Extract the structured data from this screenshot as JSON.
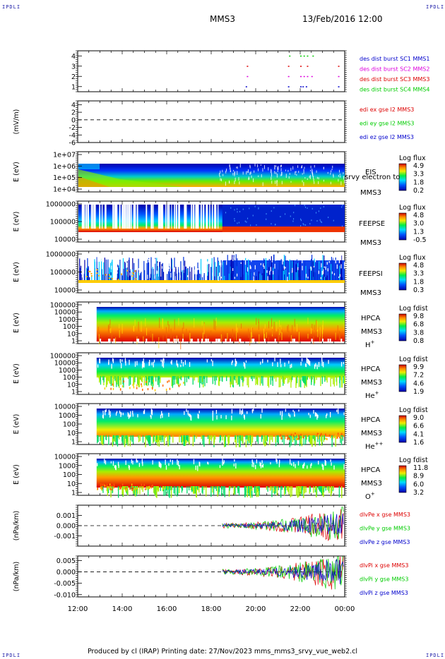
{
  "header": {
    "title": "MMS3",
    "date": "13/Feb/2016 12:00",
    "corner_label": "IPDLI"
  },
  "footer": {
    "text": "Produced by cl (IRAP)   Printing date: 27/Nov/2023   mms_mms3_srvy_vue_web2.cl"
  },
  "colors": {
    "red": "#dd0000",
    "green": "#00cc00",
    "blue": "#0000cc",
    "magenta": "#dd00dd"
  },
  "chart_data": [
    {
      "type": "scatter",
      "panel": "burst availability",
      "yticks": [
        "4",
        "3",
        "2",
        "1"
      ],
      "ylim": [
        0.5,
        4.5
      ],
      "legend": [
        {
          "label": "des dist burst SC1 MMS1",
          "color": "#0000cc"
        },
        {
          "label": "des dist burst SC2 MMS2",
          "color": "#dd00dd"
        },
        {
          "label": "des dist burst SC3 MMS3",
          "color": "#dd0000"
        },
        {
          "label": "des dist burst SC4 MMS4",
          "color": "#00cc00"
        }
      ],
      "series": [
        {
          "name": "des dist burst SC1 MMS1",
          "level": 1,
          "x": [
            19.55,
            21.45,
            22.0,
            22.1,
            22.25,
            23.7
          ]
        },
        {
          "name": "des dist burst SC2 MMS2",
          "level": 2,
          "x": [
            19.6,
            21.45,
            22.0,
            22.15,
            22.3,
            22.5,
            23.7
          ]
        },
        {
          "name": "des dist burst SC3 MMS3",
          "level": 3,
          "x": [
            19.6,
            21.45,
            22.0,
            22.3,
            23.7
          ]
        },
        {
          "name": "des dist burst SC4 MMS4",
          "level": 4,
          "x": [
            21.5,
            22.0,
            22.15,
            22.3,
            22.55
          ]
        }
      ]
    },
    {
      "type": "line",
      "panel": "edi electric field",
      "ylabel": "(mV/m)",
      "yticks": [
        "4",
        "2",
        "0",
        "-2",
        "-4",
        "-6"
      ],
      "ylim": [
        -6,
        5
      ],
      "legend": [
        {
          "label": "edi ex gse l2 MMS3",
          "color": "#dd0000"
        },
        {
          "label": "edi ey gse l2 MMS3",
          "color": "#00cc00"
        },
        {
          "label": "edi ez gse l2 MMS3",
          "color": "#0000cc"
        }
      ]
    },
    {
      "type": "heatmap",
      "panel": "EIS",
      "ylabel": "E (eV)",
      "yticks": [
        "1e+07",
        "1e+06",
        "1e+05",
        "1e+04"
      ],
      "labels": [
        "EIS",
        "srvy electron to",
        "MMS3"
      ],
      "colorbar": {
        "title": "Log flux",
        "ticks": [
          "4.9",
          "3.3",
          "1.8",
          "0.2"
        ]
      }
    },
    {
      "type": "heatmap",
      "panel": "FEEPS electrons",
      "ylabel": "E (eV)",
      "yticks": [
        "1000000",
        "100000",
        "10000"
      ],
      "labels": [
        "FEEPSE",
        "MMS3"
      ],
      "colorbar": {
        "title": "Log flux",
        "ticks": [
          "4.8",
          "3.0",
          "1.3",
          "-0.5"
        ]
      }
    },
    {
      "type": "heatmap",
      "panel": "FEEPS ions",
      "ylabel": "E (eV)",
      "yticks": [
        "1000000",
        "100000",
        "10000"
      ],
      "labels": [
        "FEEPSI",
        "MMS3"
      ],
      "colorbar": {
        "title": "Log flux",
        "ticks": [
          "4.8",
          "3.3",
          "1.8",
          "0.3"
        ]
      }
    },
    {
      "type": "heatmap",
      "panel": "HPCA H+",
      "ylabel": "E (eV)",
      "yticks": [
        "100000",
        "10000",
        "1000",
        "100",
        "10",
        "1"
      ],
      "labels": [
        "HPCA",
        "MMS3",
        "H+"
      ],
      "colorbar": {
        "title": "Log fdist",
        "ticks": [
          "9.8",
          "6.8",
          "3.8",
          "0.8"
        ]
      }
    },
    {
      "type": "heatmap",
      "panel": "HPCA He+",
      "ylabel": "E (eV)",
      "yticks": [
        "100000",
        "10000",
        "1000",
        "100",
        "10",
        "1"
      ],
      "labels": [
        "HPCA",
        "MMS3",
        "He+"
      ],
      "colorbar": {
        "title": "Log fdist",
        "ticks": [
          "9.9",
          "7.2",
          "4.6",
          "1.9"
        ]
      }
    },
    {
      "type": "heatmap",
      "panel": "HPCA He++",
      "ylabel": "E (eV)",
      "yticks": [
        "10000",
        "1000",
        "100",
        "10",
        "1"
      ],
      "labels": [
        "HPCA",
        "MMS3",
        "He++"
      ],
      "colorbar": {
        "title": "Log fdist",
        "ticks": [
          "9.0",
          "6.6",
          "4.1",
          "1.6"
        ]
      }
    },
    {
      "type": "heatmap",
      "panel": "HPCA O+",
      "ylabel": "E (eV)",
      "yticks": [
        "10000",
        "1000",
        "100",
        "10",
        "1"
      ],
      "labels": [
        "HPCA",
        "MMS3",
        "O+"
      ],
      "colorbar": {
        "title": "Log fdist",
        "ticks": [
          "11.8",
          "8.9",
          "6.0",
          "3.2"
        ]
      }
    },
    {
      "type": "line",
      "panel": "electron pressure gradient",
      "ylabel": "(nPa/km)",
      "yticks": [
        "0.001",
        "0.000",
        "-0.001"
      ],
      "ylim": [
        -0.002,
        0.002
      ],
      "legend": [
        {
          "label": "dlvPe x gse MMS3",
          "color": "#dd0000"
        },
        {
          "label": "dlvPe y gse MMS3",
          "color": "#00cc00"
        },
        {
          "label": "dlvPe z gse MMS3",
          "color": "#0000cc"
        }
      ],
      "data_start_hour": 18.5
    },
    {
      "type": "line",
      "panel": "ion pressure gradient",
      "ylabel": "(nPa/km)",
      "yticks": [
        "0.005",
        "0.000",
        "-0.005",
        "-0.010"
      ],
      "ylim": [
        -0.011,
        0.007
      ],
      "legend": [
        {
          "label": "dlvPi x gse MMS3",
          "color": "#dd0000"
        },
        {
          "label": "dlvPi y gse MMS3",
          "color": "#00cc00"
        },
        {
          "label": "dlvPi z gse MMS3",
          "color": "#0000cc"
        }
      ],
      "data_start_hour": 18.5
    }
  ],
  "x_axis": {
    "ticks": [
      "12:00",
      "14:00",
      "16:00",
      "18:00",
      "20:00",
      "22:00",
      "00:00"
    ],
    "range_hours": [
      12,
      24
    ]
  }
}
